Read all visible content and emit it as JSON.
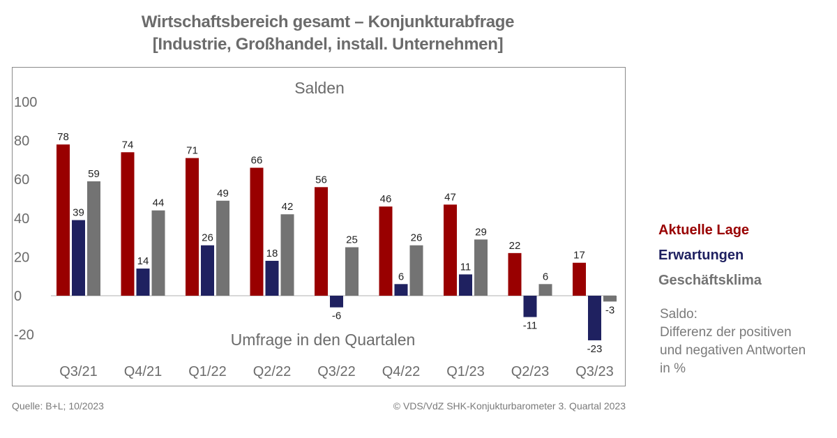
{
  "title_line1": "Wirtschaftsbereich gesamt – Konjunkturabfrage",
  "title_line2": "[Industrie, Großhandel, install. Unternehmen]",
  "legend": {
    "aktuelle_lage": "Aktuelle Lage",
    "erwartungen": "Erwartungen",
    "geschaeftsklima": "Geschäftsklima"
  },
  "note": {
    "line1": "Saldo:",
    "line2": "Differenz der positiven",
    "line3": "und negativen Antworten",
    "line4": "in %"
  },
  "source": "Quelle: B+L; 10/2023",
  "copyright": "© VDS/VdZ SHK-Konjukturbarometer 3. Quartal 2023",
  "colors": {
    "aktuelle_lage": "#990000",
    "erwartungen": "#1f2160",
    "geschaeftsklima": "#737373",
    "text": "#6b6b6b"
  },
  "chart_data": {
    "type": "bar",
    "title": "Salden",
    "xlabel": "Umfrage in den Quartalen",
    "ylabel": "",
    "ylim": [
      -20,
      100
    ],
    "yticks": [
      "100",
      "80",
      "60",
      "40",
      "20",
      "0",
      "-20"
    ],
    "categories": [
      "Q3/21",
      "Q4/21",
      "Q1/22",
      "Q2/22",
      "Q3/22",
      "Q4/22",
      "Q1/23",
      "Q2/23",
      "Q3/23"
    ],
    "series": [
      {
        "name": "Aktuelle Lage",
        "color": "#990000",
        "values": [
          78,
          74,
          71,
          66,
          56,
          46,
          47,
          22,
          17
        ]
      },
      {
        "name": "Erwartungen",
        "color": "#1f2160",
        "values": [
          39,
          14,
          26,
          18,
          -6,
          6,
          11,
          -11,
          -23
        ]
      },
      {
        "name": "Geschäftsklima",
        "color": "#737373",
        "values": [
          59,
          44,
          49,
          42,
          25,
          26,
          29,
          6,
          -3
        ]
      }
    ],
    "grid": false,
    "legend_position": "right"
  }
}
